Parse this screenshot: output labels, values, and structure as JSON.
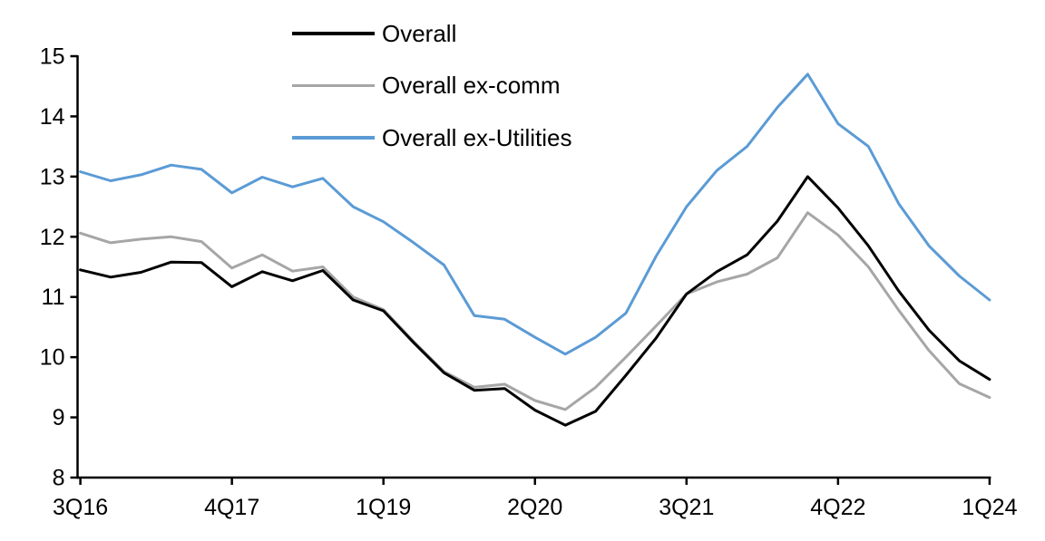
{
  "chart_data": {
    "type": "line",
    "title": "",
    "xlabel": "",
    "ylabel": "",
    "ylim": [
      8,
      15
    ],
    "y_ticks": [
      8,
      9,
      10,
      11,
      12,
      13,
      14,
      15
    ],
    "grid": false,
    "legend_position": "top-inside",
    "categories": [
      "3Q16",
      "4Q16",
      "1Q17",
      "2Q17",
      "3Q17",
      "4Q17",
      "1Q18",
      "2Q18",
      "3Q18",
      "4Q18",
      "1Q19",
      "2Q19",
      "3Q19",
      "4Q19",
      "1Q20",
      "2Q20",
      "3Q20",
      "4Q20",
      "1Q21",
      "2Q21",
      "3Q21",
      "4Q21",
      "1Q22",
      "2Q22",
      "3Q22",
      "4Q22",
      "1Q23",
      "2Q23",
      "3Q23",
      "4Q23",
      "1Q24"
    ],
    "x_tick_indices": [
      0,
      5,
      10,
      15,
      20,
      25,
      30
    ],
    "x_tick_labels": [
      "3Q16",
      "4Q17",
      "1Q19",
      "2Q20",
      "3Q21",
      "4Q22",
      "1Q24"
    ],
    "series": [
      {
        "name": "Overall",
        "color": "#000000",
        "values": [
          11.45,
          11.33,
          11.41,
          11.58,
          11.57,
          11.17,
          11.42,
          11.27,
          11.44,
          10.95,
          10.77,
          10.24,
          9.74,
          9.45,
          9.48,
          9.12,
          8.87,
          9.1,
          9.7,
          10.32,
          11.05,
          11.42,
          11.7,
          12.26,
          13.0,
          12.48,
          11.85,
          11.1,
          10.45,
          9.94,
          9.63
        ]
      },
      {
        "name": "Overall ex-comm",
        "color": "#A6A6A6",
        "values": [
          12.06,
          11.9,
          11.96,
          12.0,
          11.92,
          11.48,
          11.7,
          11.43,
          11.5,
          11.0,
          10.79,
          10.26,
          9.76,
          9.5,
          9.55,
          9.28,
          9.13,
          9.5,
          10.0,
          10.52,
          11.05,
          11.25,
          11.38,
          11.65,
          12.4,
          12.03,
          11.5,
          10.78,
          10.11,
          9.56,
          9.33
        ]
      },
      {
        "name": "Overall ex-Utilities",
        "color": "#5B9BD5",
        "values": [
          13.08,
          12.93,
          13.03,
          13.19,
          13.12,
          12.73,
          12.99,
          12.83,
          12.97,
          12.5,
          12.25,
          11.9,
          11.53,
          10.69,
          10.63,
          10.33,
          10.05,
          10.33,
          10.73,
          11.68,
          12.5,
          13.1,
          13.5,
          14.15,
          14.7,
          13.88,
          13.5,
          12.55,
          11.85,
          11.35,
          10.95
        ]
      }
    ],
    "axis_color": "#000000",
    "text_color": "#000000"
  }
}
